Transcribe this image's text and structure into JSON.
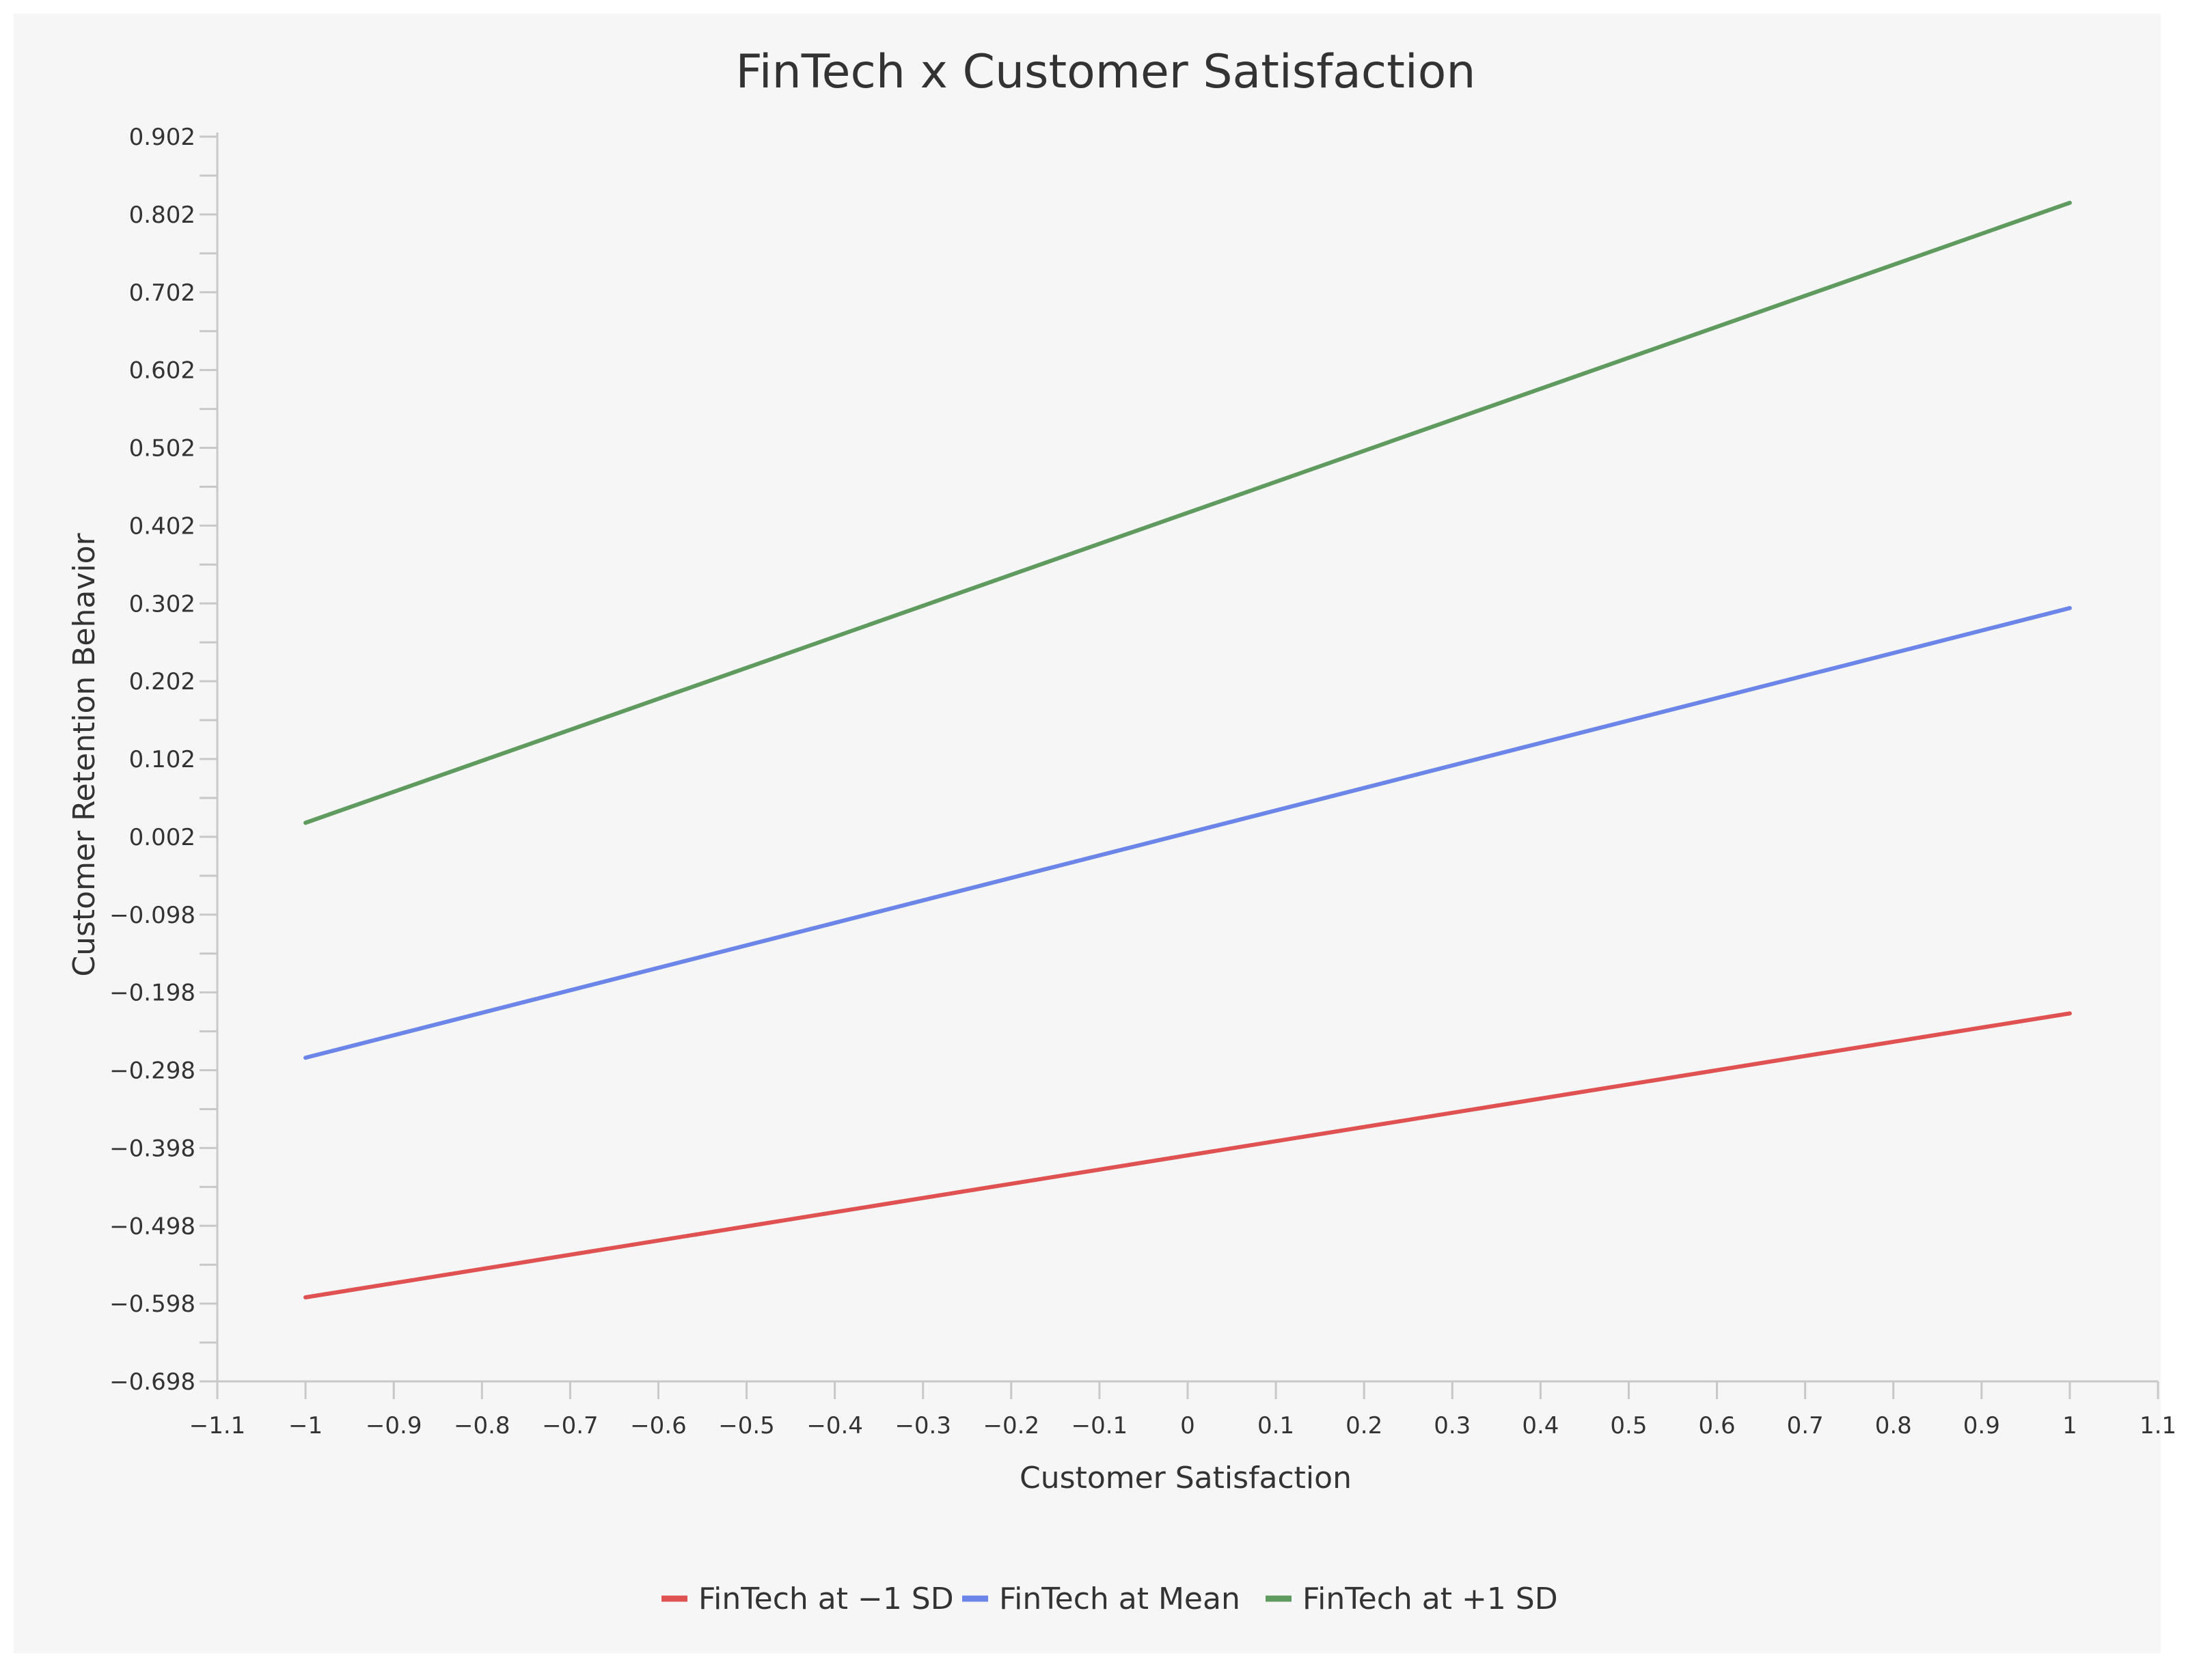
{
  "chart_data": {
    "type": "line",
    "title": "FinTech x Customer Satisfaction",
    "xlabel": "Customer Satisfaction",
    "ylabel": "Customer Retention Behavior",
    "xlim": [
      -1.1,
      1.1
    ],
    "ylim": [
      -0.698,
      0.902
    ],
    "x_ticks": [
      -1.1,
      -1,
      -0.9,
      -0.8,
      -0.7,
      -0.6,
      -0.5,
      -0.4,
      -0.3,
      -0.2,
      -0.1,
      0,
      0.1,
      0.2,
      0.3,
      0.4,
      0.5,
      0.6,
      0.7,
      0.8,
      0.9,
      1,
      1.1
    ],
    "x_tick_labels": [
      "−1.1",
      "−1",
      "−0.9",
      "−0.8",
      "−0.7",
      "−0.6",
      "−0.5",
      "−0.4",
      "−0.3",
      "−0.2",
      "−0.1",
      "0",
      "0.1",
      "0.2",
      "0.3",
      "0.4",
      "0.5",
      "0.6",
      "0.7",
      "0.8",
      "0.9",
      "1",
      "1.1"
    ],
    "y_ticks": [
      0.902,
      0.802,
      0.702,
      0.602,
      0.502,
      0.402,
      0.302,
      0.202,
      0.102,
      0.002,
      -0.098,
      -0.198,
      -0.298,
      -0.398,
      -0.498,
      -0.598,
      -0.698
    ],
    "y_tick_labels": [
      "0.902",
      "0.802",
      "0.702",
      "0.602",
      "0.502",
      "0.402",
      "0.302",
      "0.202",
      "0.102",
      "0.002",
      "−0.098",
      "−0.198",
      "−0.298",
      "−0.398",
      "−0.498",
      "−0.598",
      "−0.698"
    ],
    "grid": false,
    "legend_position": "bottom-center",
    "series": [
      {
        "name": "FinTech at −1 SD",
        "color": "#e05252",
        "x": [
          -1,
          1
        ],
        "y": [
          -0.59,
          -0.225
        ]
      },
      {
        "name": "FinTech at Mean",
        "color": "#6b86e8",
        "x": [
          -1,
          1
        ],
        "y": [
          -0.282,
          0.296
        ]
      },
      {
        "name": "FinTech at +1 SD",
        "color": "#5f9a5f",
        "x": [
          -1,
          1
        ],
        "y": [
          0.02,
          0.817
        ]
      }
    ]
  }
}
